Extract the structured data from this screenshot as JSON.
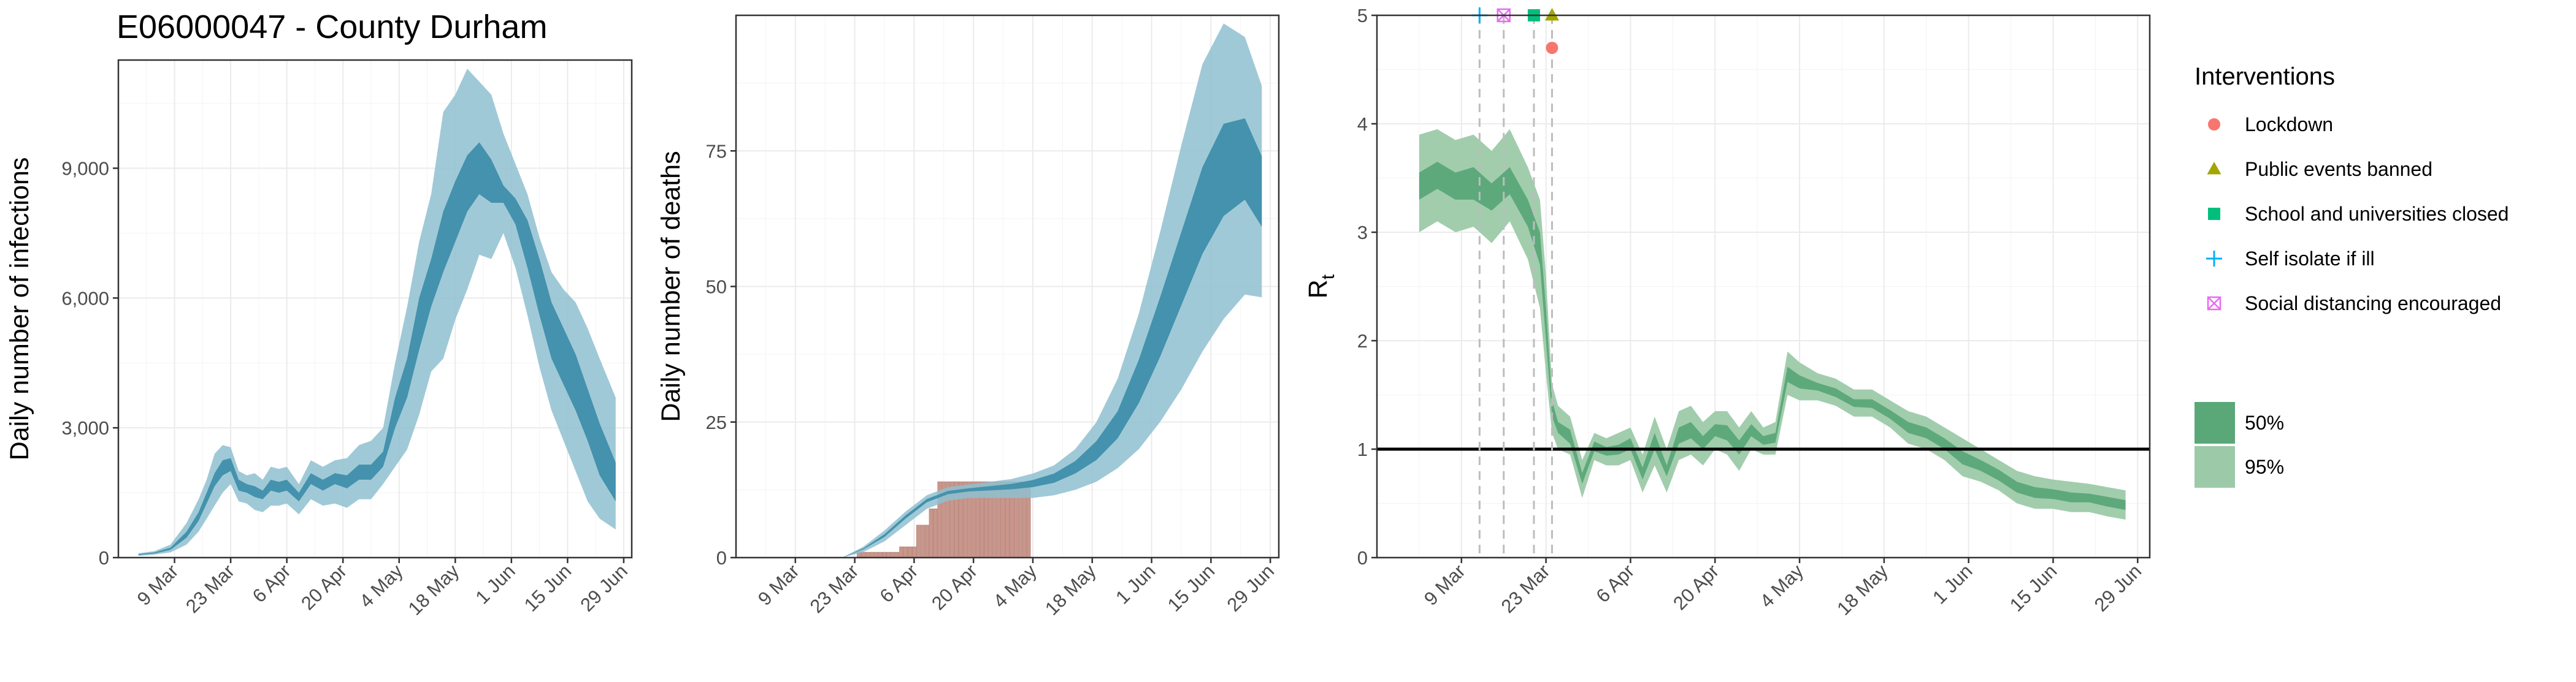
{
  "title": "E06000047 - County Durham",
  "colors": {
    "band95": "#8fc0d0",
    "band50": "#3f8fab",
    "bars": "#c8968b",
    "rt95": "#9ccaa9",
    "rt50": "#5aa778",
    "lockdown": "#f8766d",
    "public_events": "#a3a500",
    "schools": "#00bf7d",
    "self_isolate": "#00b0f6",
    "social_distancing": "#e76bf3"
  },
  "chart_data": [
    {
      "type": "area",
      "ylabel": "Daily number of infections",
      "xlabel": "",
      "xlim": [
        "2020-02-24",
        "2020-07-01"
      ],
      "ylim": [
        0,
        11500
      ],
      "yticks": [
        0,
        3000,
        6000,
        9000
      ],
      "ytick_labels": [
        "0",
        "3,000",
        "6,000",
        "9,000"
      ],
      "xticks": [
        "2020-03-09",
        "2020-03-23",
        "2020-04-06",
        "2020-04-20",
        "2020-05-04",
        "2020-05-18",
        "2020-06-01",
        "2020-06-15",
        "2020-06-29"
      ],
      "xtick_labels": [
        "9 Mar",
        "23 Mar",
        "6 Apr",
        "20 Apr",
        "4 May",
        "18 May",
        "1 Jun",
        "15 Jun",
        "29 Jun"
      ],
      "grid": true,
      "x": [
        "2020-02-29",
        "2020-03-04",
        "2020-03-08",
        "2020-03-12",
        "2020-03-15",
        "2020-03-17",
        "2020-03-19",
        "2020-03-21",
        "2020-03-23",
        "2020-03-25",
        "2020-03-27",
        "2020-03-29",
        "2020-03-31",
        "2020-04-02",
        "2020-04-04",
        "2020-04-06",
        "2020-04-09",
        "2020-04-12",
        "2020-04-15",
        "2020-04-18",
        "2020-04-21",
        "2020-04-24",
        "2020-04-27",
        "2020-04-30",
        "2020-05-03",
        "2020-05-06",
        "2020-05-09",
        "2020-05-12",
        "2020-05-15",
        "2020-05-18",
        "2020-05-21",
        "2020-05-24",
        "2020-05-27",
        "2020-05-30",
        "2020-06-02",
        "2020-06-05",
        "2020-06-08",
        "2020-06-11",
        "2020-06-14",
        "2020-06-17",
        "2020-06-20",
        "2020-06-23",
        "2020-06-27"
      ],
      "series": [
        {
          "band": "95%",
          "lower": [
            40,
            70,
            120,
            300,
            600,
            900,
            1200,
            1500,
            1700,
            1300,
            1250,
            1100,
            1050,
            1200,
            1200,
            1250,
            1000,
            1350,
            1200,
            1250,
            1150,
            1350,
            1350,
            1700,
            2100,
            2500,
            3300,
            4300,
            4600,
            5500,
            6200,
            7000,
            6900,
            7500,
            6700,
            5600,
            4400,
            3400,
            2700,
            2000,
            1300,
            900,
            650
          ],
          "upper": [
            100,
            150,
            300,
            800,
            1350,
            1800,
            2400,
            2600,
            2550,
            2000,
            1900,
            1950,
            1800,
            2100,
            2050,
            2100,
            1700,
            2250,
            2100,
            2250,
            2300,
            2600,
            2700,
            3000,
            4500,
            5800,
            7300,
            8400,
            10300,
            10700,
            11300,
            11000,
            10700,
            9800,
            9100,
            8400,
            7400,
            6600,
            6200,
            5900,
            5300,
            4600,
            3700
          ]
        },
        {
          "band": "50%",
          "lower": [
            60,
            95,
            180,
            460,
            850,
            1250,
            1650,
            1900,
            2000,
            1550,
            1500,
            1400,
            1350,
            1550,
            1500,
            1550,
            1300,
            1700,
            1550,
            1700,
            1600,
            1800,
            1800,
            2100,
            3000,
            3700,
            4800,
            5800,
            6600,
            7300,
            8000,
            8400,
            8200,
            8200,
            7700,
            6700,
            5600,
            4600,
            4000,
            3400,
            2700,
            1900,
            1300
          ],
          "upper": [
            80,
            120,
            230,
            600,
            1050,
            1500,
            1950,
            2250,
            2300,
            1800,
            1700,
            1650,
            1550,
            1800,
            1750,
            1800,
            1500,
            1950,
            1800,
            1950,
            1900,
            2150,
            2150,
            2450,
            3700,
            4600,
            6000,
            6900,
            8000,
            8700,
            9300,
            9600,
            9200,
            8600,
            8300,
            7800,
            6900,
            5900,
            5300,
            4700,
            3900,
            3100,
            2200
          ]
        }
      ]
    },
    {
      "type": "area",
      "ylabel": "Daily number of deaths",
      "xlabel": "",
      "xlim": [
        "2020-02-24",
        "2020-07-01"
      ],
      "ylim": [
        0,
        100
      ],
      "yticks": [
        0,
        25,
        50,
        75
      ],
      "ytick_labels": [
        "0",
        "25",
        "50",
        "75"
      ],
      "xticks": [
        "2020-03-09",
        "2020-03-23",
        "2020-04-06",
        "2020-04-20",
        "2020-05-04",
        "2020-05-18",
        "2020-06-01",
        "2020-06-15",
        "2020-06-29"
      ],
      "xtick_labels": [
        "9 Mar",
        "23 Mar",
        "6 Apr",
        "20 Apr",
        "4 May",
        "18 May",
        "1 Jun",
        "15 Jun",
        "29 Jun"
      ],
      "grid": true,
      "x": [
        "2020-03-10",
        "2020-03-15",
        "2020-03-20",
        "2020-03-25",
        "2020-03-30",
        "2020-04-04",
        "2020-04-09",
        "2020-04-14",
        "2020-04-19",
        "2020-04-24",
        "2020-04-29",
        "2020-05-04",
        "2020-05-09",
        "2020-05-14",
        "2020-05-19",
        "2020-05-24",
        "2020-05-29",
        "2020-06-03",
        "2020-06-08",
        "2020-06-13",
        "2020-06-18",
        "2020-06-23",
        "2020-06-27"
      ],
      "series": [
        {
          "band": "95%",
          "lower": [
            0,
            0,
            0,
            1,
            3,
            6,
            9,
            10.5,
            11,
            11,
            11,
            11,
            11.5,
            12.5,
            14,
            16.5,
            20,
            25,
            31,
            38,
            44,
            48.5,
            48
          ],
          "upper": [
            0,
            0,
            0,
            2,
            5,
            8.5,
            11.5,
            13,
            13.5,
            14,
            14.5,
            15.5,
            17,
            20,
            25,
            33,
            45,
            60,
            76,
            91,
            98.5,
            96,
            87
          ]
        },
        {
          "band": "50%",
          "lower": [
            0,
            0,
            0,
            1.5,
            3.8,
            7.2,
            10.2,
            11.7,
            12.2,
            12.4,
            12.6,
            13,
            13.8,
            15.5,
            18,
            22,
            28.5,
            37,
            46.5,
            56,
            63,
            66,
            61
          ]
        },
        {
          "band": "50%-upper",
          "upper": [
            0,
            0,
            0,
            1.7,
            4.3,
            7.8,
            10.8,
            12.3,
            12.8,
            13.2,
            13.6,
            14.3,
            15.5,
            17.8,
            21.5,
            27,
            36.5,
            48,
            60,
            72,
            80,
            81,
            74
          ]
        }
      ],
      "bars": {
        "x": [
          "2020-03-24",
          "2020-03-25",
          "2020-03-26",
          "2020-03-27",
          "2020-03-28",
          "2020-03-29",
          "2020-03-30",
          "2020-03-31",
          "2020-04-01",
          "2020-04-02",
          "2020-04-03",
          "2020-04-04",
          "2020-04-05",
          "2020-04-06",
          "2020-04-07",
          "2020-04-08",
          "2020-04-09",
          "2020-04-10",
          "2020-04-11",
          "2020-04-12",
          "2020-04-13",
          "2020-04-14",
          "2020-04-15",
          "2020-04-16",
          "2020-04-17",
          "2020-04-18",
          "2020-04-19",
          "2020-04-20",
          "2020-04-21",
          "2020-04-22",
          "2020-04-23",
          "2020-04-24",
          "2020-04-25",
          "2020-04-26",
          "2020-04-27",
          "2020-04-28",
          "2020-04-29",
          "2020-04-30",
          "2020-05-01",
          "2020-05-02",
          "2020-05-03"
        ],
        "values": [
          1,
          1,
          1,
          1,
          1,
          1,
          1,
          1,
          1,
          1,
          2,
          2,
          2,
          2,
          6,
          6,
          6,
          9,
          9,
          14,
          14,
          14,
          14,
          14,
          14,
          14,
          14,
          14,
          14,
          14,
          14,
          14,
          14,
          14,
          14,
          14,
          14,
          14,
          14,
          14,
          14
        ]
      }
    },
    {
      "type": "area",
      "ylabel": "R",
      "ylabel_sub": "t",
      "xlabel": "",
      "xlim": [
        "2020-02-24",
        "2020-07-01"
      ],
      "ylim": [
        0,
        5
      ],
      "yticks": [
        0,
        1,
        2,
        3,
        4,
        5
      ],
      "ytick_labels": [
        "0",
        "1",
        "2",
        "3",
        "4",
        "5"
      ],
      "xticks": [
        "2020-03-09",
        "2020-03-23",
        "2020-04-06",
        "2020-04-20",
        "2020-05-04",
        "2020-05-18",
        "2020-06-01",
        "2020-06-15",
        "2020-06-29"
      ],
      "xtick_labels": [
        "9 Mar",
        "23 Mar",
        "6 Apr",
        "20 Apr",
        "4 May",
        "18 May",
        "1 Jun",
        "15 Jun",
        "29 Jun"
      ],
      "grid": true,
      "reference_line": 1,
      "x": [
        "2020-03-02",
        "2020-03-05",
        "2020-03-08",
        "2020-03-11",
        "2020-03-14",
        "2020-03-17",
        "2020-03-20",
        "2020-03-22",
        "2020-03-23",
        "2020-03-24",
        "2020-03-25",
        "2020-03-27",
        "2020-03-29",
        "2020-03-31",
        "2020-04-02",
        "2020-04-04",
        "2020-04-06",
        "2020-04-08",
        "2020-04-10",
        "2020-04-12",
        "2020-04-14",
        "2020-04-16",
        "2020-04-18",
        "2020-04-20",
        "2020-04-22",
        "2020-04-24",
        "2020-04-26",
        "2020-04-28",
        "2020-04-30",
        "2020-05-02",
        "2020-05-04",
        "2020-05-07",
        "2020-05-10",
        "2020-05-13",
        "2020-05-16",
        "2020-05-19",
        "2020-05-22",
        "2020-05-25",
        "2020-05-28",
        "2020-05-31",
        "2020-06-03",
        "2020-06-06",
        "2020-06-09",
        "2020-06-12",
        "2020-06-15",
        "2020-06-18",
        "2020-06-21",
        "2020-06-24",
        "2020-06-27"
      ],
      "series": [
        {
          "band": "95%",
          "lower": [
            3.0,
            3.1,
            3.0,
            3.05,
            2.9,
            3.1,
            2.75,
            2.3,
            1.7,
            1.15,
            1.0,
            0.95,
            0.55,
            0.9,
            0.85,
            0.85,
            0.9,
            0.6,
            0.85,
            0.6,
            0.9,
            0.95,
            0.85,
            1.0,
            0.95,
            0.8,
            1.0,
            0.95,
            0.95,
            1.5,
            1.45,
            1.45,
            1.4,
            1.3,
            1.3,
            1.2,
            1.05,
            1.0,
            0.9,
            0.75,
            0.7,
            0.62,
            0.5,
            0.45,
            0.45,
            0.42,
            0.42,
            0.38,
            0.35
          ],
          "upper": [
            3.9,
            3.95,
            3.85,
            3.9,
            3.75,
            3.95,
            3.6,
            3.3,
            2.6,
            1.6,
            1.4,
            1.3,
            0.9,
            1.15,
            1.1,
            1.15,
            1.2,
            0.95,
            1.3,
            1.0,
            1.35,
            1.4,
            1.25,
            1.35,
            1.35,
            1.2,
            1.35,
            1.2,
            1.25,
            1.9,
            1.8,
            1.7,
            1.65,
            1.55,
            1.55,
            1.45,
            1.35,
            1.3,
            1.2,
            1.1,
            1.0,
            0.9,
            0.8,
            0.75,
            0.72,
            0.7,
            0.68,
            0.65,
            0.62
          ]
        },
        {
          "band": "50%",
          "lower": [
            3.3,
            3.4,
            3.3,
            3.3,
            3.2,
            3.35,
            3.05,
            2.7,
            2.0,
            1.3,
            1.15,
            1.05,
            0.68,
            0.98,
            0.94,
            0.95,
            1.0,
            0.72,
            1.0,
            0.75,
            1.05,
            1.1,
            1.0,
            1.12,
            1.08,
            0.95,
            1.12,
            1.04,
            1.06,
            1.62,
            1.56,
            1.54,
            1.48,
            1.39,
            1.38,
            1.28,
            1.15,
            1.1,
            1.0,
            0.86,
            0.8,
            0.71,
            0.6,
            0.55,
            0.54,
            0.51,
            0.51,
            0.47,
            0.44
          ],
          "upper": [
            3.55,
            3.65,
            3.55,
            3.6,
            3.45,
            3.6,
            3.3,
            3.0,
            2.3,
            1.45,
            1.25,
            1.18,
            0.78,
            1.07,
            1.02,
            1.04,
            1.1,
            0.83,
            1.15,
            0.85,
            1.2,
            1.25,
            1.12,
            1.23,
            1.22,
            1.08,
            1.23,
            1.12,
            1.15,
            1.76,
            1.68,
            1.61,
            1.56,
            1.46,
            1.46,
            1.36,
            1.25,
            1.2,
            1.1,
            0.98,
            0.9,
            0.81,
            0.7,
            0.65,
            0.63,
            0.6,
            0.59,
            0.56,
            0.53
          ]
        }
      ],
      "interventions": [
        {
          "name": "Self isolate if ill",
          "date": "2020-03-12",
          "y": 5.0,
          "marker": "plus"
        },
        {
          "name": "Social distancing encouraged",
          "date": "2020-03-16",
          "y": 5.0,
          "marker": "boxx"
        },
        {
          "name": "School and universities closed",
          "date": "2020-03-21",
          "y": 5.0,
          "marker": "square"
        },
        {
          "name": "Public events banned",
          "date": "2020-03-24",
          "y": 5.0,
          "marker": "triangle"
        },
        {
          "name": "Lockdown",
          "date": "2020-03-24",
          "y": 4.7,
          "marker": "circle"
        }
      ],
      "vlines": [
        "2020-03-12",
        "2020-03-16",
        "2020-03-21",
        "2020-03-24"
      ]
    }
  ],
  "legend": {
    "title": "Interventions",
    "items": [
      {
        "label": "Lockdown",
        "marker": "circle",
        "color": "#f8766d"
      },
      {
        "label": "Public events banned",
        "marker": "triangle",
        "color": "#a3a500"
      },
      {
        "label": "School and universities closed",
        "marker": "square",
        "color": "#00bf7d"
      },
      {
        "label": "Self isolate if ill",
        "marker": "plus",
        "color": "#00b0f6"
      },
      {
        "label": "Social distancing encouraged",
        "marker": "boxx",
        "color": "#e76bf3"
      }
    ],
    "bands": [
      {
        "label": "50%",
        "color": "#5aa778"
      },
      {
        "label": "95%",
        "color": "#9ccaa9"
      }
    ]
  }
}
